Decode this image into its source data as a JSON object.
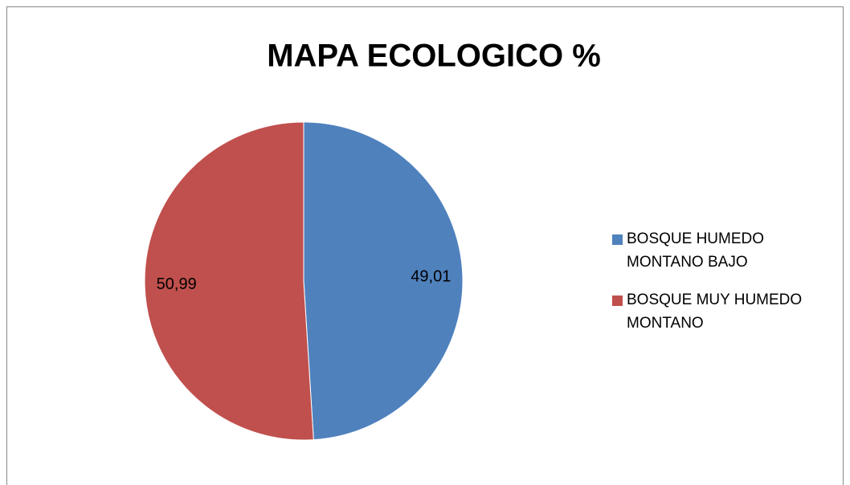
{
  "chart_data": {
    "type": "pie",
    "title": "MAPA ECOLOGICO %",
    "categories": [
      "BOSQUE HUMEDO MONTANO BAJO",
      "BOSQUE MUY HUMEDO MONTANO"
    ],
    "values": [
      49.01,
      50.99
    ],
    "value_labels": [
      "49,01",
      "50,99"
    ],
    "colors": [
      "#4f81bd",
      "#c0504d"
    ],
    "legend": "right"
  }
}
